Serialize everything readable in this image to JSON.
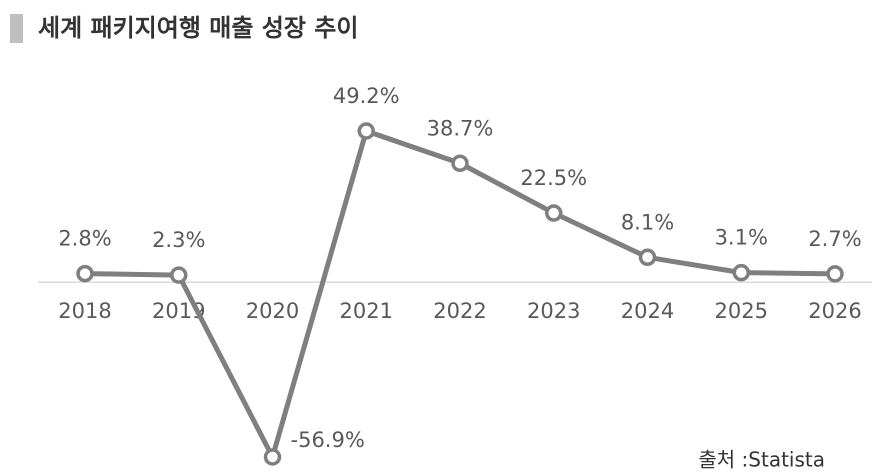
{
  "chart_data": {
    "type": "line",
    "title": "세계 패키지여행 매출 성장 추이",
    "categories": [
      "2018",
      "2019",
      "2020",
      "2021",
      "2022",
      "2023",
      "2024",
      "2025",
      "2026"
    ],
    "values": [
      2.8,
      2.3,
      -56.9,
      49.2,
      38.7,
      22.5,
      8.1,
      3.1,
      2.7
    ],
    "value_labels": [
      "2.8%",
      "2.3%",
      "-56.9%",
      "49.2%",
      "38.7%",
      "22.5%",
      "8.1%",
      "3.1%",
      "2.7%"
    ],
    "color": "#7f7f7f",
    "source": "출처 :Statista"
  }
}
